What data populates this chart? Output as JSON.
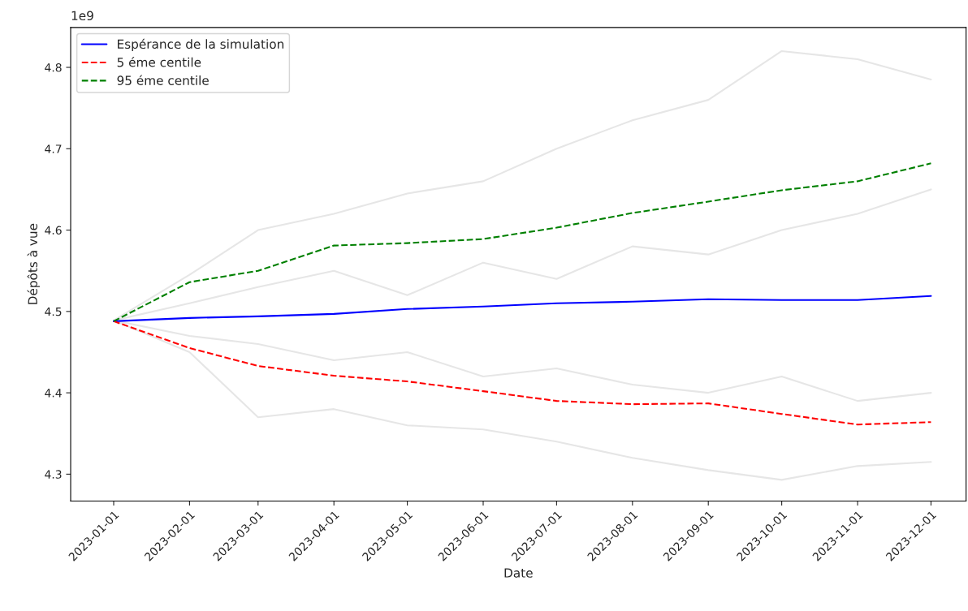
{
  "chart_data": {
    "type": "line",
    "xlabel": "Date",
    "ylabel": "Dépôts à vue",
    "annotations": [
      "1e9"
    ],
    "x": [
      "2023-01-01",
      "2023-02-01",
      "2023-03-01",
      "2023-04-01",
      "2023-05-01",
      "2023-06-01",
      "2023-07-01",
      "2023-08-01",
      "2023-09-01",
      "2023-10-01",
      "2023-11-01",
      "2023-12-01"
    ],
    "xlim": [
      "2022-12-14T10:00",
      "2023-12-15T08:00"
    ],
    "xticks": [
      "2023-01-01",
      "2023-02-01",
      "2023-03-01",
      "2023-04-01",
      "2023-05-01",
      "2023-06-01",
      "2023-07-01",
      "2023-08-01",
      "2023-09-01",
      "2023-10-01",
      "2023-11-01",
      "2023-12-01"
    ],
    "ylim": [
      4.267,
      4.849
    ],
    "yticks": [
      4.3,
      4.4,
      4.5,
      4.6,
      4.7,
      4.8
    ],
    "legend": "top left",
    "series": [
      {
        "color": "#e6e6e6",
        "line_style": "solid",
        "values": [
          4.489,
          4.545,
          4.6,
          4.62,
          4.645,
          4.66,
          4.7,
          4.735,
          4.76,
          4.82,
          4.81,
          4.785
        ]
      },
      {
        "color": "#e6e6e6",
        "line_style": "solid",
        "values": [
          4.489,
          4.45,
          4.37,
          4.38,
          4.36,
          4.355,
          4.34,
          4.32,
          4.305,
          4.293,
          4.31,
          4.315
        ]
      },
      {
        "color": "#e6e6e6",
        "line_style": "solid",
        "values": [
          4.489,
          4.51,
          4.53,
          4.55,
          4.52,
          4.56,
          4.54,
          4.58,
          4.57,
          4.6,
          4.62,
          4.65
        ]
      },
      {
        "color": "#e6e6e6",
        "line_style": "solid",
        "values": [
          4.489,
          4.47,
          4.46,
          4.44,
          4.45,
          4.42,
          4.43,
          4.41,
          4.4,
          4.42,
          4.39,
          4.4
        ]
      },
      {
        "name": "Espérance de la simulation",
        "color": "#0000ff",
        "line_style": "solid",
        "values": [
          4.488,
          4.492,
          4.494,
          4.497,
          4.503,
          4.506,
          4.51,
          4.512,
          4.515,
          4.514,
          4.514,
          4.519
        ]
      },
      {
        "name": "5 éme centile",
        "color": "#ff0000",
        "line_style": "dashed",
        "values": [
          4.488,
          4.455,
          4.433,
          4.421,
          4.414,
          4.402,
          4.39,
          4.386,
          4.387,
          4.374,
          4.361,
          4.364
        ]
      },
      {
        "name": "95 éme centile",
        "color": "#008000",
        "line_style": "dashed",
        "values": [
          4.488,
          4.536,
          4.55,
          4.581,
          4.584,
          4.589,
          4.603,
          4.621,
          4.635,
          4.649,
          4.66,
          4.682
        ]
      }
    ]
  }
}
